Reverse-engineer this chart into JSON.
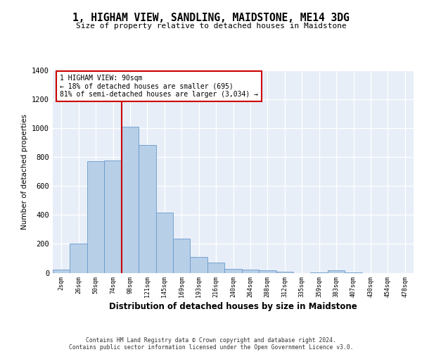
{
  "title": "1, HIGHAM VIEW, SANDLING, MAIDSTONE, ME14 3DG",
  "subtitle": "Size of property relative to detached houses in Maidstone",
  "xlabel": "Distribution of detached houses by size in Maidstone",
  "ylabel": "Number of detached properties",
  "bar_labels": [
    "2sqm",
    "26sqm",
    "50sqm",
    "74sqm",
    "98sqm",
    "121sqm",
    "145sqm",
    "169sqm",
    "193sqm",
    "216sqm",
    "240sqm",
    "264sqm",
    "288sqm",
    "312sqm",
    "335sqm",
    "359sqm",
    "383sqm",
    "407sqm",
    "430sqm",
    "454sqm",
    "478sqm"
  ],
  "bar_values": [
    20,
    200,
    770,
    775,
    1010,
    885,
    415,
    235,
    110,
    70,
    25,
    20,
    15,
    5,
    0,
    2,
    15,
    1,
    0,
    0,
    0
  ],
  "bar_color": "#b8cfe8",
  "bar_edgecolor": "#6699cc",
  "vline_index": 4.0,
  "vline_color": "#cc0000",
  "annotation_text": "1 HIGHAM VIEW: 90sqm\n← 18% of detached houses are smaller (695)\n81% of semi-detached houses are larger (3,034) →",
  "ylim": [
    0,
    1400
  ],
  "yticks": [
    0,
    200,
    400,
    600,
    800,
    1000,
    1200,
    1400
  ],
  "footer1": "Contains HM Land Registry data © Crown copyright and database right 2024.",
  "footer2": "Contains public sector information licensed under the Open Government Licence v3.0.",
  "bg_color": "#e8eef8"
}
